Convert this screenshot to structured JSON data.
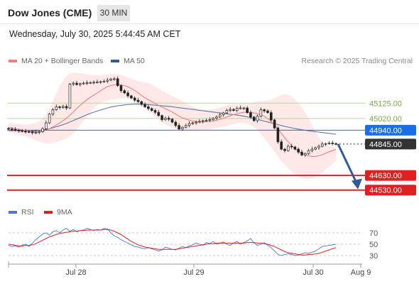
{
  "header": {
    "title": "Dow Jones (CME)",
    "timeframe": "30 MIN",
    "datetime": "Wednesday, July 30, 2025 5:44:45 AM CET"
  },
  "legend": {
    "ma20_label": "MA 20 + Bollinger Bands",
    "ma50_label": "MA 50",
    "credit": "Research © 2025 Trading Central"
  },
  "colors": {
    "ma20": "#f08080",
    "band": "#fde0e0",
    "ma50": "#2f5c99",
    "up": "#ffffff",
    "down": "#222222",
    "resistance": "#b8d98a",
    "support": "#e02020",
    "pivot": "#1a6fe6",
    "last": "#333333",
    "arrow": "#2f5c99",
    "rsi": "#4a79d9",
    "rsi_ma": "#e02020"
  },
  "chart_data": [
    {
      "type": "candlestick",
      "title": "",
      "x_labels": [
        "Jul 28",
        "Jul 29",
        "Jul 30",
        "Aug 9"
      ],
      "ylim": [
        44480,
        45345
      ],
      "levels": [
        {
          "value": 45125.0,
          "label": "45125.00",
          "kind": "resistance"
        },
        {
          "value": 45020.0,
          "label": "45020.00",
          "kind": "resistance"
        },
        {
          "value": 44940.0,
          "label": "44940.00",
          "kind": "pivot"
        },
        {
          "value": 44845.0,
          "label": "44845.00",
          "kind": "last"
        },
        {
          "value": 44630.0,
          "label": "44630.00",
          "kind": "support"
        },
        {
          "value": 44530.0,
          "label": "44530.00",
          "kind": "support"
        }
      ],
      "close": [
        44948,
        44945,
        44940,
        44936,
        44932,
        44930,
        44928,
        44922,
        44925,
        44930,
        44950,
        44990,
        45050,
        45080,
        45100,
        45095,
        45102,
        45092,
        45255,
        45262,
        45252,
        45258,
        45262,
        45264,
        45266,
        45268,
        45270,
        45272,
        45275,
        45282,
        45290,
        45292,
        45245,
        45210,
        45195,
        45175,
        45160,
        45145,
        45135,
        45118,
        45100,
        45088,
        45075,
        45062,
        45040,
        45012,
        45022,
        45015,
        44995,
        44972,
        44948,
        44960,
        44972,
        44985,
        44990,
        44995,
        45000,
        45005,
        45008,
        45012,
        45022,
        45030,
        45045,
        45058,
        45075,
        45082,
        45075,
        45090,
        45092,
        45092,
        45060,
        45030,
        45005,
        45035,
        45080,
        45072,
        45060,
        45010,
        44955,
        44860,
        44810,
        44800,
        44830,
        44825,
        44810,
        44790,
        44770,
        44780,
        44800,
        44810,
        44820,
        44830,
        44845,
        44848,
        44852,
        44848,
        44845
      ],
      "ma20": [
        44958,
        44955,
        44950,
        44946,
        44942,
        44938,
        44934,
        44930,
        44928,
        44928,
        44932,
        44940,
        44950,
        44962,
        44975,
        44990,
        45005,
        45022,
        45042,
        45065,
        45088,
        45110,
        45130,
        45148,
        45165,
        45180,
        45195,
        45210,
        45225,
        45238,
        45245,
        45250,
        45252,
        45250,
        45245,
        45236,
        45225,
        45212,
        45196,
        45178,
        45162,
        45148,
        45136,
        45122,
        45110,
        45098,
        45087,
        45076,
        45064,
        45050,
        45036,
        45024,
        45016,
        45008,
        45002,
        44998,
        44996,
        44996,
        44998,
        45000,
        45003,
        45008,
        45014,
        45021,
        45030,
        45038,
        45046,
        45053,
        45058,
        45062,
        45063,
        45062,
        45058,
        45052,
        45045,
        45035,
        45020,
        45000,
        44975,
        44948,
        44918,
        44888,
        44860,
        44835,
        44813,
        44795,
        44782,
        44772,
        44765,
        44760,
        44760,
        44765,
        44772,
        44782,
        44792,
        44800,
        44808
      ],
      "ma50": [
        44938,
        44938,
        44937,
        44936,
        44935,
        44934,
        44934,
        44935,
        44936,
        44938,
        44941,
        44945,
        44950,
        44956,
        44963,
        44970,
        44978,
        44986,
        44996,
        45006,
        45016,
        45026,
        45036,
        45046,
        45055,
        45063,
        45071,
        45078,
        45085,
        45092,
        45098,
        45103,
        45107,
        45110,
        45113,
        45115,
        45117,
        45118,
        45118,
        45117,
        45116,
        45115,
        45113,
        45111,
        45109,
        45107,
        45105,
        45103,
        45100,
        45097,
        45094,
        45091,
        45088,
        45085,
        45082,
        45079,
        45076,
        45073,
        45070,
        45067,
        45064,
        45061,
        45058,
        45055,
        45052,
        45049,
        45046,
        45043,
        45040,
        45036,
        45031,
        45026,
        45020,
        45014,
        45008,
        45002,
        44996,
        44990,
        44984,
        44978,
        44972,
        44966,
        44961,
        44956,
        44951,
        44947,
        44943,
        44939,
        44936,
        44933,
        44930,
        44927,
        44924,
        44921,
        44918,
        44915,
        44912
      ],
      "band_upper": [
        44990,
        44990,
        44985,
        44982,
        44980,
        44978,
        44980,
        44985,
        44990,
        45000,
        45020,
        45050,
        45090,
        45140,
        45190,
        45240,
        45280,
        45310,
        45330,
        45335,
        45335,
        45330,
        45325,
        45320,
        45318,
        45316,
        45315,
        45315,
        45318,
        45322,
        45325,
        45325,
        45322,
        45318,
        45310,
        45300,
        45290,
        45282,
        45276,
        45272,
        45268,
        45262,
        45252,
        45240,
        45226,
        45212,
        45198,
        45186,
        45174,
        45162,
        45150,
        45138,
        45125,
        45112,
        45100,
        45092,
        45086,
        45082,
        45080,
        45080,
        45082,
        45088,
        45095,
        45102,
        45108,
        45112,
        45115,
        45118,
        45120,
        45122,
        45125,
        45128,
        45132,
        45135,
        45138,
        45142,
        45145,
        45150,
        45160,
        45170,
        45182,
        45185,
        45182,
        45170,
        45150,
        45125,
        45095,
        45060,
        45020,
        44975,
        44930,
        44890,
        44860,
        44840,
        44830,
        44825,
        44822
      ],
      "band_lower": [
        44925,
        44920,
        44915,
        44910,
        44905,
        44898,
        44890,
        44880,
        44870,
        44862,
        44855,
        44850,
        44850,
        44855,
        44860,
        44868,
        44875,
        44885,
        44900,
        44920,
        44945,
        44975,
        45005,
        45035,
        45065,
        45090,
        45110,
        45125,
        45135,
        45142,
        45148,
        45152,
        45155,
        45158,
        45160,
        45158,
        45152,
        45142,
        45128,
        45110,
        45092,
        45072,
        45052,
        45032,
        45012,
        44995,
        44980,
        44968,
        44958,
        44950,
        44944,
        44940,
        44938,
        44937,
        44936,
        44936,
        44937,
        44939,
        44942,
        44946,
        44950,
        44955,
        44960,
        44966,
        44972,
        44978,
        44983,
        44987,
        44990,
        44990,
        44985,
        44975,
        44960,
        44940,
        44915,
        44888,
        44858,
        44825,
        44792,
        44760,
        44732,
        44705,
        44680,
        44658,
        44640,
        44625,
        44612,
        44605,
        44605,
        44610,
        44620,
        44635,
        44652,
        44670,
        44690,
        44710,
        44730
      ],
      "forecast_arrow": {
        "from": 44845,
        "to": 44550
      }
    },
    {
      "type": "line",
      "title": "",
      "series": [
        {
          "name": "RSI",
          "values": [
            48,
            46,
            47,
            45,
            48,
            50,
            46,
            52,
            58,
            63,
            68,
            70,
            66,
            72,
            74,
            70,
            75,
            78,
            73,
            76,
            72,
            74,
            75,
            78,
            76,
            74,
            76,
            75,
            78,
            77,
            70,
            65,
            62,
            58,
            55,
            52,
            49,
            46,
            45,
            43,
            42,
            44,
            42,
            40,
            38,
            40,
            45,
            43,
            41,
            40,
            43,
            46,
            44,
            47,
            49,
            52,
            50,
            48,
            53,
            51,
            55,
            50,
            52,
            54,
            50,
            48,
            52,
            55,
            50,
            53,
            56,
            60,
            52,
            48,
            50,
            53,
            48,
            44,
            38,
            32,
            30,
            32,
            33,
            32,
            30,
            31,
            33,
            35,
            34,
            36,
            38,
            42,
            46,
            47,
            48,
            49,
            50
          ]
        },
        {
          "name": "9MA",
          "values": [
            50,
            49,
            48,
            47,
            47,
            48,
            48,
            49,
            51,
            54,
            57,
            60,
            63,
            65,
            67,
            69,
            70,
            71,
            72,
            73,
            73,
            74,
            74,
            75,
            75,
            75,
            75,
            75,
            76,
            76,
            75,
            73,
            70,
            67,
            63,
            59,
            55,
            52,
            49,
            47,
            45,
            44,
            43,
            42,
            41,
            41,
            41,
            41,
            41,
            41,
            42,
            43,
            44,
            45,
            46,
            47,
            48,
            49,
            50,
            51,
            51,
            52,
            52,
            52,
            52,
            52,
            52,
            52,
            52,
            52,
            53,
            53,
            53,
            52,
            52,
            51,
            50,
            48,
            46,
            43,
            40,
            37,
            35,
            34,
            33,
            32,
            31,
            31,
            32,
            32,
            33,
            34,
            36,
            38,
            40,
            42,
            44
          ]
        }
      ],
      "ylim": [
        15,
        85
      ],
      "y_ticks": [
        70,
        50,
        30
      ]
    }
  ]
}
